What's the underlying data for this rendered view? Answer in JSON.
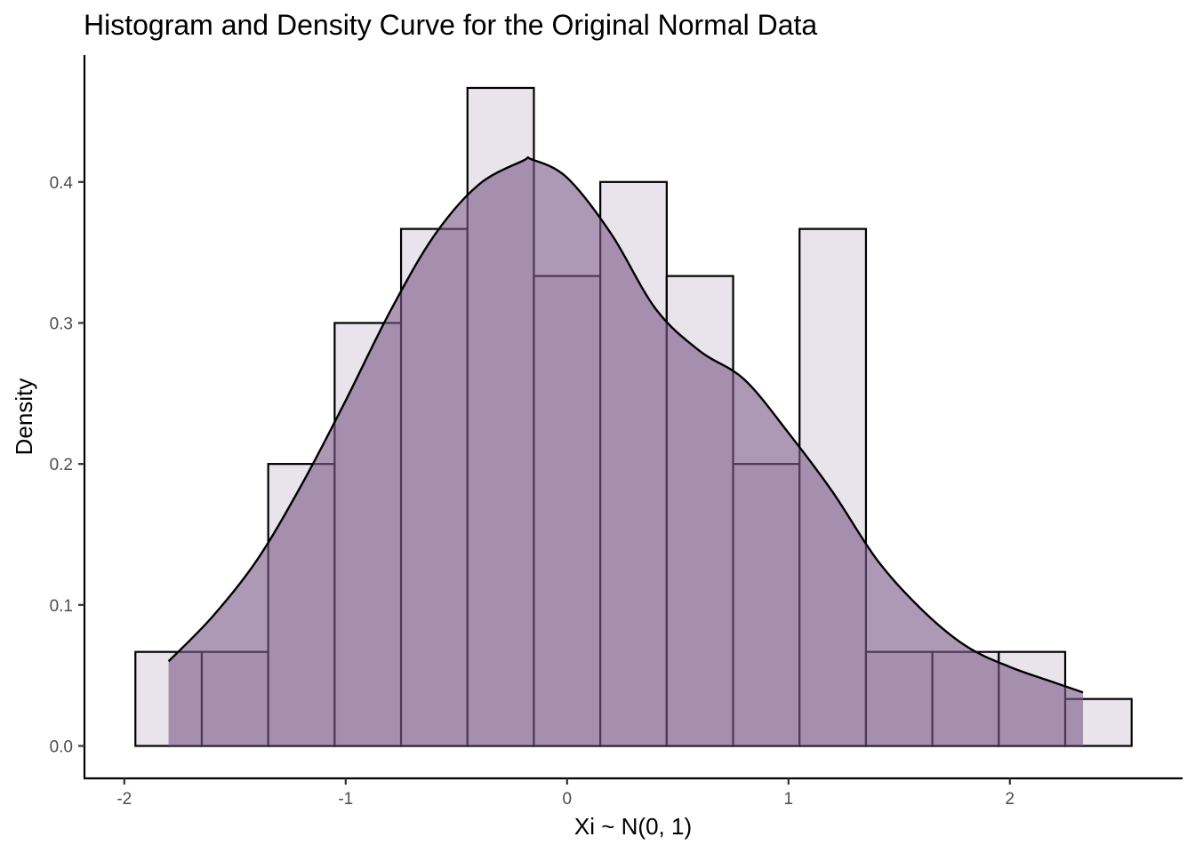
{
  "chart_data": {
    "type": "bar",
    "title": "Histogram and Density Curve for the Original Normal Data",
    "xlabel": "Xi ~ N(0, 1)",
    "ylabel": "Density",
    "xlim": [
      -2.18,
      2.78
    ],
    "ylim": [
      -0.023,
      0.49
    ],
    "x_ticks": [
      -2,
      -1,
      0,
      1,
      2
    ],
    "y_ticks": [
      0.0,
      0.1,
      0.2,
      0.3,
      0.4
    ],
    "x_tick_labels": [
      "-2",
      "-1",
      "0",
      "1",
      "2"
    ],
    "y_tick_labels": [
      "0.0",
      "0.1",
      "0.2",
      "0.3",
      "0.4"
    ],
    "grid": false,
    "legend": "none",
    "histogram": {
      "bin_width": 0.3,
      "bin_starts": [
        -1.95,
        -1.65,
        -1.35,
        -1.05,
        -0.75,
        -0.45,
        -0.15,
        0.15,
        0.45,
        0.75,
        1.05,
        1.35,
        1.65,
        1.95,
        2.25
      ],
      "values": [
        0.0667,
        0.0667,
        0.2,
        0.3,
        0.3667,
        0.4667,
        0.3333,
        0.4,
        0.3333,
        0.2,
        0.3667,
        0.0667,
        0.0667,
        0.0667,
        0.0333
      ],
      "fill": "#e9e3ec",
      "stroke": "#000000"
    },
    "density": {
      "x": [
        -1.8,
        -1.6,
        -1.4,
        -1.2,
        -1.0,
        -0.8,
        -0.6,
        -0.4,
        -0.2,
        -0.16,
        0.0,
        0.2,
        0.4,
        0.6,
        0.8,
        1.0,
        1.2,
        1.4,
        1.6,
        1.8,
        2.0,
        2.2,
        2.33
      ],
      "y": [
        0.06,
        0.092,
        0.132,
        0.185,
        0.245,
        0.308,
        0.362,
        0.398,
        0.415,
        0.416,
        0.403,
        0.363,
        0.31,
        0.28,
        0.26,
        0.222,
        0.18,
        0.132,
        0.097,
        0.071,
        0.056,
        0.045,
        0.038
      ],
      "fill": "#7b5a87",
      "fill_opacity": 0.62,
      "stroke": "#000000"
    }
  }
}
